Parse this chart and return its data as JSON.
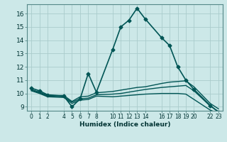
{
  "xlabel": "Humidex (Indice chaleur)",
  "background_color": "#cce8e8",
  "grid_color": "#aacccc",
  "line_color": "#005555",
  "ylim": [
    8.7,
    16.7
  ],
  "xlim": [
    -0.5,
    23.5
  ],
  "yticks": [
    9,
    10,
    11,
    12,
    13,
    14,
    15,
    16
  ],
  "xtick_positions": [
    0,
    1,
    2,
    4,
    5,
    6,
    7,
    8,
    10,
    11,
    12,
    13,
    14,
    16,
    17,
    18,
    19,
    20,
    22,
    23
  ],
  "xtick_labels": [
    "0",
    "1",
    "2",
    "4",
    "5",
    "6",
    "7",
    "8",
    "10",
    "11",
    "12",
    "13",
    "14",
    "16",
    "17",
    "18",
    "19",
    "20",
    "22",
    "23"
  ],
  "series": [
    {
      "x": [
        0,
        1,
        2,
        4,
        5,
        6,
        7,
        8,
        10,
        11,
        12,
        13,
        14,
        16,
        17,
        18,
        19,
        20,
        22,
        23
      ],
      "y": [
        10.4,
        10.2,
        9.9,
        9.8,
        9.0,
        9.6,
        11.5,
        10.1,
        13.3,
        15.0,
        15.5,
        16.4,
        15.6,
        14.2,
        13.6,
        12.0,
        11.0,
        10.3,
        9.1,
        8.6
      ],
      "marker": "D",
      "markersize": 2.5,
      "lw": 1.2
    },
    {
      "x": [
        0,
        1,
        2,
        4,
        5,
        6,
        7,
        8,
        10,
        11,
        12,
        13,
        14,
        16,
        17,
        18,
        19,
        20,
        22,
        23
      ],
      "y": [
        10.3,
        10.1,
        9.85,
        9.85,
        9.4,
        9.75,
        9.8,
        10.05,
        10.15,
        10.25,
        10.35,
        10.45,
        10.5,
        10.75,
        10.85,
        10.9,
        10.95,
        10.5,
        9.25,
        8.85
      ],
      "marker": null,
      "markersize": 0,
      "lw": 1.0
    },
    {
      "x": [
        0,
        1,
        2,
        4,
        5,
        6,
        7,
        8,
        10,
        11,
        12,
        13,
        14,
        16,
        17,
        18,
        19,
        20,
        22,
        23
      ],
      "y": [
        10.25,
        10.05,
        9.8,
        9.75,
        9.35,
        9.6,
        9.65,
        9.9,
        9.95,
        10.0,
        10.1,
        10.2,
        10.3,
        10.45,
        10.5,
        10.55,
        10.6,
        10.2,
        9.05,
        8.65
      ],
      "marker": null,
      "markersize": 0,
      "lw": 1.0
    },
    {
      "x": [
        0,
        1,
        2,
        4,
        5,
        6,
        7,
        8,
        10,
        11,
        12,
        13,
        14,
        16,
        17,
        18,
        19,
        20,
        22,
        23
      ],
      "y": [
        10.2,
        10.0,
        9.75,
        9.7,
        9.25,
        9.5,
        9.55,
        9.8,
        9.75,
        9.8,
        9.85,
        9.9,
        9.95,
        10.0,
        10.0,
        10.0,
        9.95,
        9.55,
        8.75,
        8.5
      ],
      "marker": null,
      "markersize": 0,
      "lw": 1.0
    }
  ]
}
